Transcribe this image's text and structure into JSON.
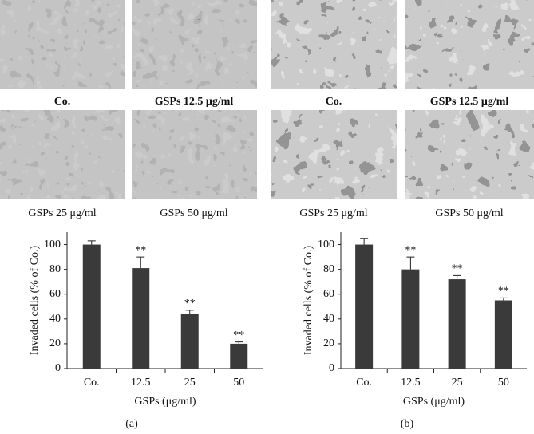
{
  "micrographs": {
    "a": [
      "Co.",
      "GSPs 12.5 μg/ml",
      "GSPs 25 μg/ml",
      "GSPs 50 μg/ml"
    ],
    "b": [
      "Co.",
      "GSPs 12.5 μg/ml",
      "GSPs 25 μg/ml",
      "GSPs 50 μg/ml"
    ]
  },
  "chart_data": [
    {
      "type": "bar",
      "panel_label": "(a)",
      "y_label": "Invaded cells (% of Co.)",
      "x_label": "GSPs (μg/ml)",
      "categories": [
        "Co.",
        "12.5",
        "25",
        "50"
      ],
      "values": [
        100,
        81,
        44,
        20
      ],
      "errors": [
        3,
        9,
        3,
        1.5
      ],
      "annotations": [
        null,
        "**",
        "**",
        "**"
      ],
      "color": "#3a3a3a",
      "ylim": [
        0,
        110
      ],
      "yticks": [
        0,
        20,
        40,
        60,
        80,
        100
      ]
    },
    {
      "type": "bar",
      "panel_label": "(b)",
      "y_label": "Invaded cells (% of Co.)",
      "x_label": "GSPs (μg/ml)",
      "categories": [
        "Co.",
        "12.5",
        "25",
        "50"
      ],
      "values": [
        100,
        80,
        72,
        55
      ],
      "errors": [
        5,
        10,
        3,
        2
      ],
      "annotations": [
        null,
        "**",
        "**",
        "**"
      ],
      "color": "#3a3a3a",
      "ylim": [
        0,
        110
      ],
      "yticks": [
        0,
        20,
        40,
        60,
        80,
        100
      ]
    }
  ]
}
